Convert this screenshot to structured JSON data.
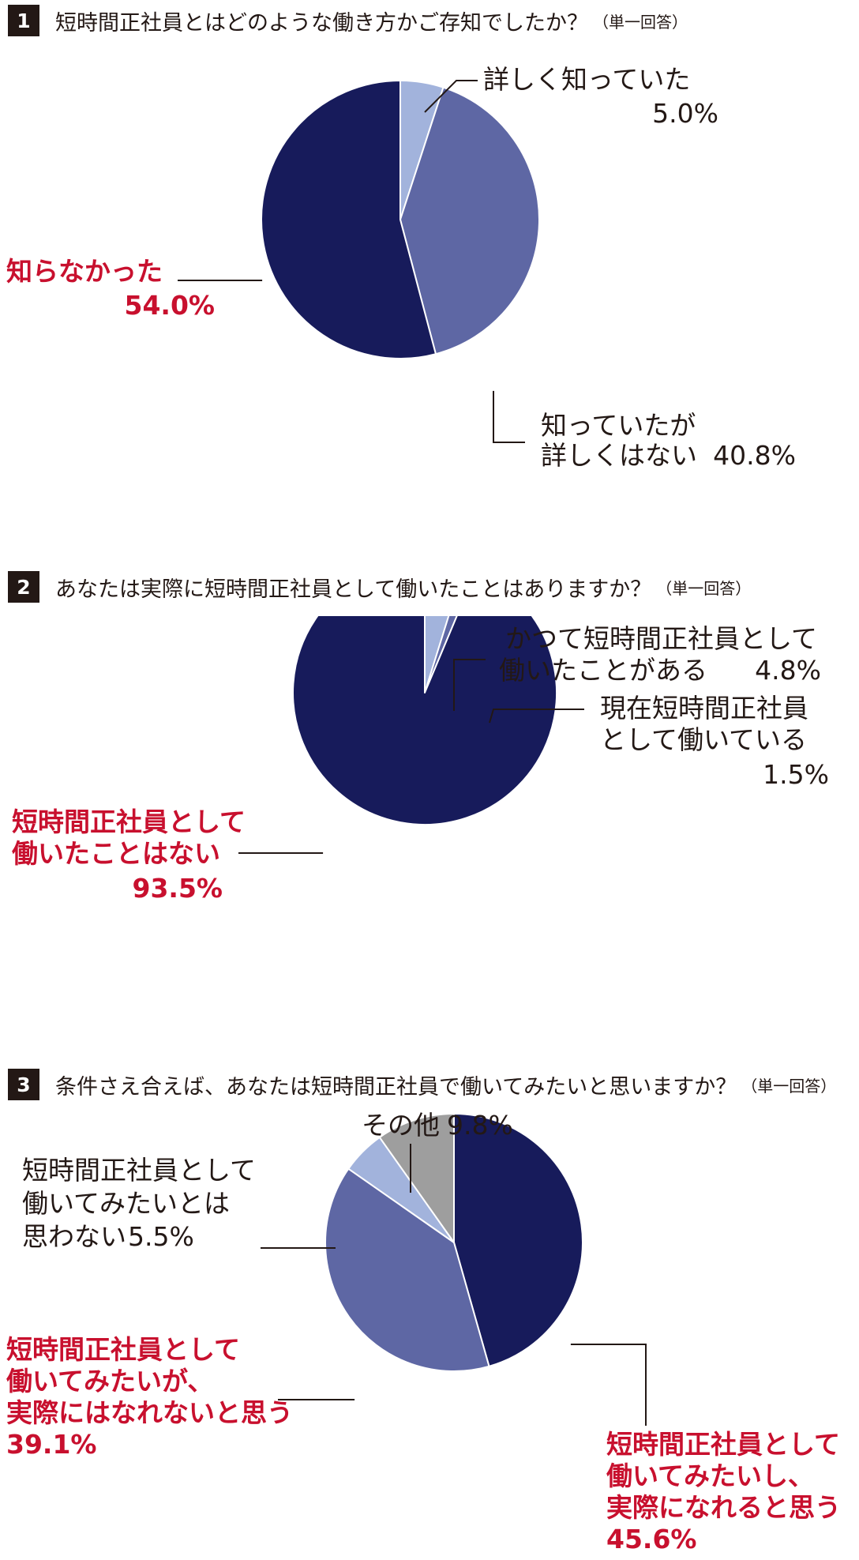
{
  "colors": {
    "navy": "#171b5b",
    "mid": "#5e67a4",
    "light": "#a2b3dc",
    "gray": "#9e9e9e",
    "highlight": "#c8102e"
  },
  "questions": [
    {
      "number": "1",
      "text": "短時間正社員とはどのような働き方かご存知でしたか？",
      "note": "（単一回答）"
    },
    {
      "number": "2",
      "text": "あなたは実際に短時間正社員として働いたことはありますか？",
      "note": "（単一回答）"
    },
    {
      "number": "3",
      "text": "条件さえ合えば、あなたは短時間正社員で働いてみたいと思いますか？",
      "note": "（単一回答）"
    }
  ],
  "chart_data": [
    {
      "type": "pie",
      "slices": [
        {
          "label": [
            "詳しく知っていた"
          ],
          "value": 5.0,
          "value_text": "5.0%",
          "color": "#a2b3dc"
        },
        {
          "label": [
            "知っていたが",
            "詳しくはない"
          ],
          "value": 40.8,
          "value_text": "40.8%",
          "color": "#5e67a4"
        },
        {
          "label": [
            "知らなかった"
          ],
          "value": 54.0,
          "value_text": "54.0%",
          "color": "#171b5b",
          "highlight": true
        }
      ]
    },
    {
      "type": "pie",
      "slices": [
        {
          "label": [
            "かつて短時間正社員として",
            "働いたことがある"
          ],
          "value": 4.8,
          "value_text": "4.8%",
          "color": "#a2b3dc"
        },
        {
          "label": [
            "現在短時間正社員",
            "として働いている"
          ],
          "value": 1.5,
          "value_text": "1.5%",
          "color": "#5e67a4"
        },
        {
          "label": [
            "短時間正社員として",
            "働いたことはない"
          ],
          "value": 93.5,
          "value_text": "93.5%",
          "color": "#171b5b",
          "highlight": true
        }
      ]
    },
    {
      "type": "pie",
      "slices": [
        {
          "label": [
            "短時間正社員として",
            "働いてみたいし、",
            "実際になれると思う"
          ],
          "value": 45.6,
          "value_text": "45.6%",
          "color": "#171b5b",
          "highlight": true
        },
        {
          "label": [
            "短時間正社員として",
            "働いてみたいが、",
            "実際にはなれないと思う"
          ],
          "value": 39.1,
          "value_text": "39.1%",
          "color": "#5e67a4",
          "highlight": true
        },
        {
          "label": [
            "短時間正社員として",
            "働いてみたいとは",
            "思わない"
          ],
          "value": 5.5,
          "value_text": "5.5%",
          "color": "#a2b3dc"
        },
        {
          "label": [
            "その他"
          ],
          "value": 9.8,
          "value_text": "9.8%",
          "color": "#9e9e9e"
        }
      ]
    }
  ]
}
